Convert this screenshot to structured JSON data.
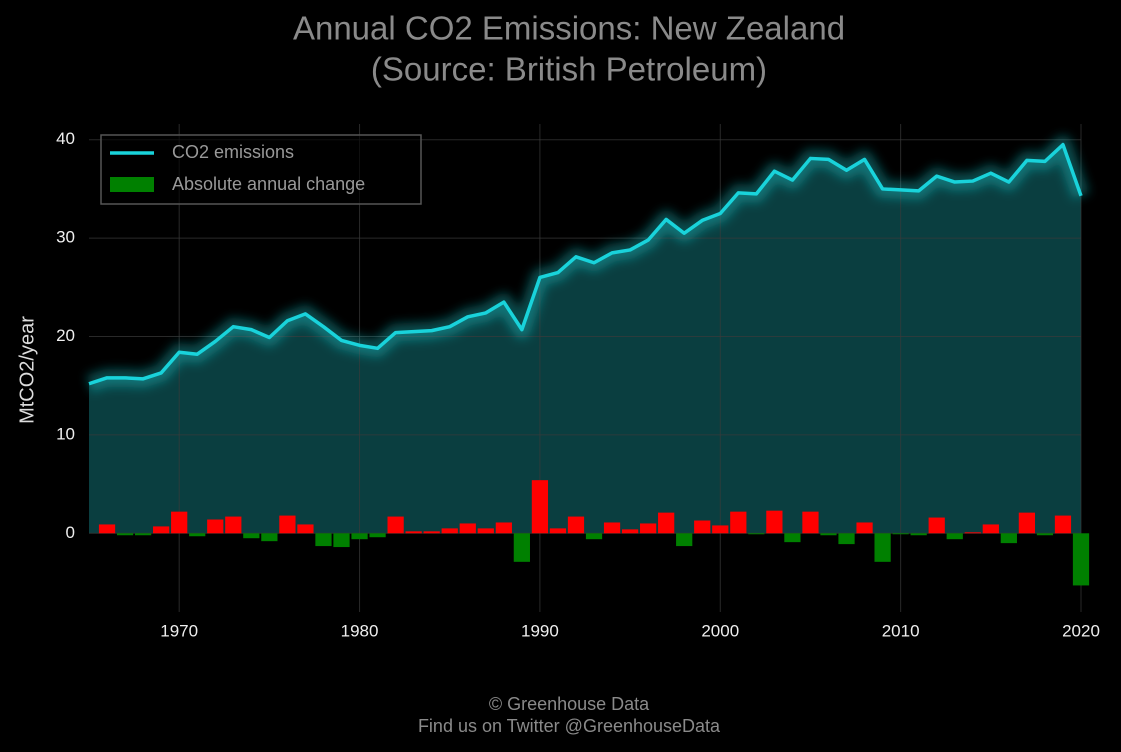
{
  "chart_data": {
    "type": "line_bar",
    "title": "Annual CO2 Emissions: New Zealand",
    "subtitle": "(Source: British Petroleum)",
    "y_label": "MtCO2/year",
    "footer": [
      "© Greenhouse Data",
      "Find us on Twitter @GreenhouseData"
    ],
    "x": [
      1965,
      1966,
      1967,
      1968,
      1969,
      1970,
      1971,
      1972,
      1973,
      1974,
      1975,
      1976,
      1977,
      1978,
      1979,
      1980,
      1981,
      1982,
      1983,
      1984,
      1985,
      1986,
      1987,
      1988,
      1989,
      1990,
      1991,
      1992,
      1993,
      1994,
      1995,
      1996,
      1997,
      1998,
      1999,
      2000,
      2001,
      2002,
      2003,
      2004,
      2005,
      2006,
      2007,
      2008,
      2009,
      2010,
      2011,
      2012,
      2013,
      2014,
      2015,
      2016,
      2017,
      2018,
      2019,
      2020
    ],
    "series": [
      {
        "name": "CO2 emissions",
        "color": "#19d3db",
        "area_color": "#0b4547",
        "values": [
          15.2,
          15.8,
          15.8,
          15.7,
          16.3,
          18.4,
          18.2,
          19.5,
          21.0,
          20.7,
          19.9,
          21.6,
          22.3,
          21.0,
          19.6,
          19.1,
          18.8,
          20.4,
          20.5,
          20.6,
          21.0,
          22.0,
          22.4,
          23.5,
          20.7,
          26.0,
          26.5,
          28.1,
          27.5,
          28.5,
          28.8,
          29.8,
          31.9,
          30.5,
          31.8,
          32.5,
          34.6,
          34.5,
          36.8,
          35.9,
          38.1,
          38.0,
          36.9,
          38.0,
          35.0,
          34.9,
          34.8,
          36.3,
          35.7,
          35.8,
          36.6,
          35.7,
          37.9,
          37.8,
          39.5,
          34.3
        ]
      },
      {
        "name": "Absolute annual change",
        "color": "#008000",
        "positive_color": "#ff0000",
        "values": [
          null,
          0.9,
          -0.2,
          -0.2,
          0.7,
          2.2,
          -0.3,
          1.4,
          1.7,
          -0.5,
          -0.8,
          1.8,
          0.9,
          -1.3,
          -1.4,
          -0.6,
          -0.4,
          1.7,
          0.2,
          0.2,
          0.5,
          1.0,
          0.5,
          1.1,
          -2.9,
          5.4,
          0.5,
          1.7,
          -0.6,
          1.1,
          0.4,
          1.0,
          2.1,
          -1.3,
          1.3,
          0.8,
          2.2,
          -0.1,
          2.3,
          -0.9,
          2.2,
          -0.2,
          -1.1,
          1.1,
          -2.9,
          -0.1,
          -0.2,
          1.6,
          -0.6,
          0.1,
          0.9,
          -1.0,
          2.1,
          -0.2,
          1.8,
          -5.3
        ]
      }
    ],
    "xlim": [
      1965,
      2020
    ],
    "xticks": [
      1970,
      1980,
      1990,
      2000,
      2010,
      2020
    ],
    "ylim": [
      -8,
      41.6
    ],
    "yticks": [
      0,
      10,
      20,
      30,
      40
    ],
    "grid": true,
    "legend": "upper left"
  }
}
